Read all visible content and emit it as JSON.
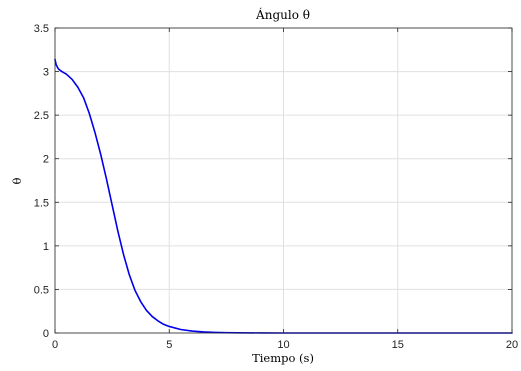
{
  "chart_data": {
    "type": "line",
    "title": "Ángulo θ",
    "xlabel": "Tiempo (s)",
    "ylabel": "θ",
    "xlim": [
      0,
      20
    ],
    "ylim": [
      0,
      3.5
    ],
    "xticks": [
      "0",
      "5",
      "10",
      "15",
      "20"
    ],
    "yticks": [
      "0",
      "0.5",
      "1",
      "1.5",
      "2",
      "2.5",
      "3",
      "3.5"
    ],
    "grid": true,
    "legend": "none",
    "colors": {
      "line": "#0000ee",
      "grid": "#e0e0e0",
      "axis": "#262626"
    },
    "series": [
      {
        "x": [
          0,
          0.05,
          0.15,
          0.3,
          0.5,
          0.75,
          1.0,
          1.25,
          1.5,
          1.75,
          2.0,
          2.25,
          2.5,
          2.75,
          3.0,
          3.25,
          3.5,
          3.75,
          4.0,
          4.25,
          4.5,
          4.75,
          5.0,
          5.5,
          6.0,
          6.5,
          7.0,
          7.5,
          8.0,
          9.0,
          10.0,
          12.0,
          15.0,
          20.0
        ],
        "y": [
          3.14,
          3.08,
          3.03,
          3.0,
          2.97,
          2.91,
          2.82,
          2.7,
          2.52,
          2.3,
          2.05,
          1.77,
          1.47,
          1.17,
          0.9,
          0.67,
          0.49,
          0.36,
          0.26,
          0.19,
          0.14,
          0.1,
          0.075,
          0.04,
          0.022,
          0.012,
          0.007,
          0.004,
          0.002,
          0.001,
          0.0,
          0.0,
          0.0,
          0.0
        ]
      }
    ]
  }
}
